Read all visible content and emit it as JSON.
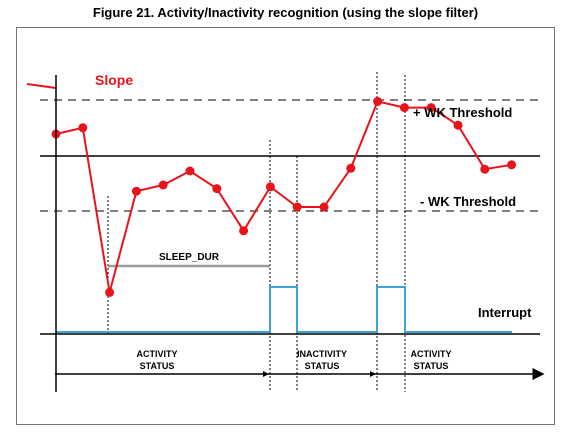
{
  "figure": {
    "title": "Figure 21. Activity/Inactivity recognition (using the slope filter)"
  },
  "labels": {
    "slope": "Slope",
    "pos_threshold": "+ WK Threshold",
    "neg_threshold": "- WK Threshold",
    "sleep_dur": "SLEEP_DUR",
    "interrupt": "Interrupt",
    "status_1_line1": "ACTIVITY",
    "status_1_line2": "STATUS",
    "status_2_line1": "INACTIVITY",
    "status_2_line2": "STATUS",
    "status_3_line1": "ACTIVITY",
    "status_3_line2": "STATUS"
  },
  "colors": {
    "slope": "#e8141c",
    "interrupt": "#3fa3d8",
    "sleep_bar": "#9a9a9a",
    "axis": "#000000"
  },
  "chart_data": {
    "type": "line",
    "series": [
      {
        "name": "Slope",
        "values": [
          0.25,
          0.32,
          -1.55,
          -0.4,
          -0.33,
          -0.17,
          -0.37,
          -0.85,
          -0.35,
          -0.58,
          -0.58,
          -0.14,
          0.62,
          0.55,
          0.55,
          0.35,
          -0.15,
          -0.1
        ]
      },
      {
        "name": "Interrupt",
        "intervals": [
          [
            8.0,
            9.0
          ],
          [
            12.0,
            13.0
          ]
        ]
      }
    ],
    "thresholds": {
      "positive": 0.15,
      "negative": -1.0
    },
    "sleep_dur": [
      2.0,
      8.0
    ]
  }
}
